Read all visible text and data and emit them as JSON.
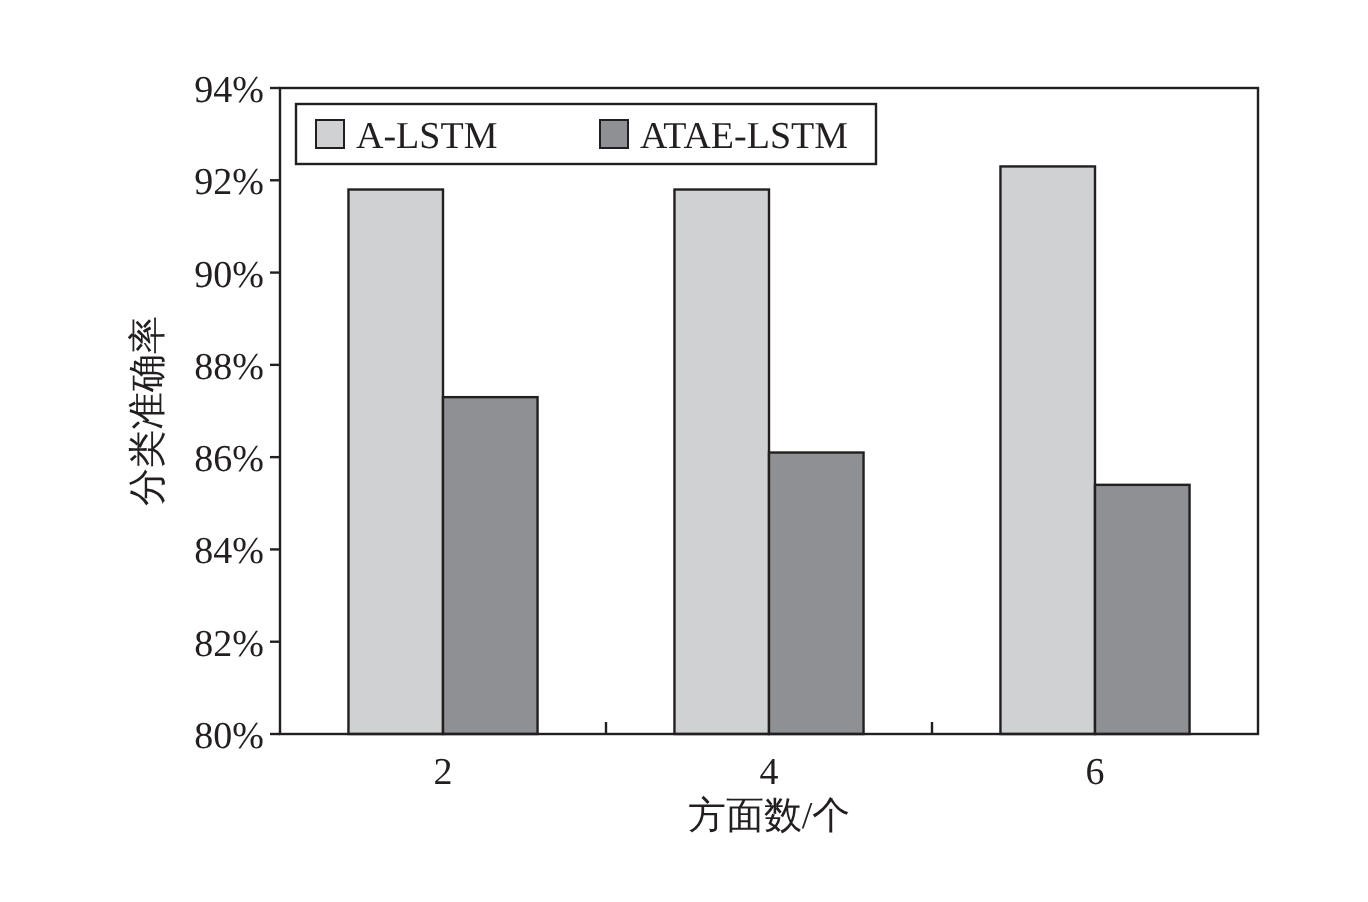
{
  "chart_data": {
    "type": "bar",
    "xlabel": "方面数/个",
    "ylabel": "分类准确率",
    "categories": [
      "2",
      "4",
      "6"
    ],
    "series": [
      {
        "name": "A-LSTM",
        "color": "#d0d1d3",
        "values": [
          91.8,
          91.8,
          92.3
        ]
      },
      {
        "name": "ATAE-LSTM",
        "color": "#8f9094",
        "values": [
          87.3,
          86.1,
          85.4
        ]
      }
    ],
    "ylim": [
      80,
      94
    ],
    "yticks": [
      {
        "value": 80,
        "label": "80%"
      },
      {
        "value": 82,
        "label": "82%"
      },
      {
        "value": 84,
        "label": "84%"
      },
      {
        "value": 86,
        "label": "86%"
      },
      {
        "value": 88,
        "label": "88%"
      },
      {
        "value": 90,
        "label": "90%"
      },
      {
        "value": 92,
        "label": "92%"
      },
      {
        "value": 94,
        "label": "94%"
      }
    ],
    "grid": false,
    "legend": "top left"
  }
}
